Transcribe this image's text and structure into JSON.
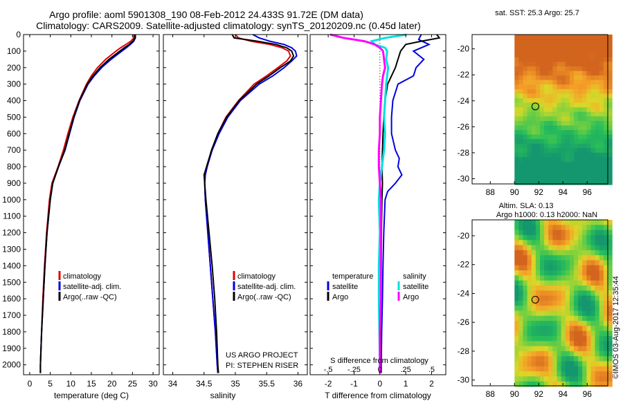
{
  "title": {
    "line1": "Argo profile: aoml 5901308_190 08-Feb-2012 24.433S 91.72E (DM data)",
    "line2": "Climatology: CARS2009. Satellite-adjusted climatology: synTS_20120209.nc (0.45d later)"
  },
  "colors": {
    "climatology": "#e00000",
    "satellite": "#0000e0",
    "argo": "#000000",
    "salinity_satellite": "#00e0e0",
    "salinity_argo": "#ff00ff"
  },
  "depth_axis": {
    "ylim": [
      0,
      2060
    ],
    "ticks": [
      0,
      100,
      200,
      300,
      400,
      500,
      600,
      700,
      800,
      900,
      1000,
      1100,
      1200,
      1300,
      1400,
      1500,
      1600,
      1700,
      1800,
      1900,
      2000
    ]
  },
  "chart_data": [
    {
      "id": "temperature",
      "type": "line",
      "xlabel": "temperature (deg C)",
      "xlim": [
        -1.5,
        31.5
      ],
      "xticks": [
        0,
        5,
        10,
        15,
        20,
        25,
        30
      ],
      "series": [
        {
          "name": "climatology",
          "color": "#e00000",
          "depth": [
            0,
            20,
            40,
            60,
            80,
            100,
            150,
            200,
            250,
            300,
            400,
            500,
            600,
            700,
            800,
            900,
            1000,
            1200,
            1400,
            1600,
            1800,
            2000,
            2050
          ],
          "values": [
            25.3,
            25.3,
            24.6,
            23.4,
            22.1,
            21.0,
            18.5,
            16.5,
            15.0,
            13.8,
            12.0,
            10.5,
            9.3,
            8.2,
            6.9,
            5.4,
            4.8,
            4.1,
            3.6,
            3.2,
            2.9,
            2.6,
            2.6
          ]
        },
        {
          "name": "satellite-adj. clim.",
          "color": "#0000e0",
          "depth": [
            0,
            20,
            40,
            60,
            80,
            100,
            150,
            200,
            250,
            300,
            400,
            500,
            600,
            700,
            800,
            900,
            1000,
            1200,
            1400,
            1600,
            1800,
            2000,
            2050
          ],
          "values": [
            25.7,
            25.7,
            25.3,
            24.5,
            23.5,
            22.4,
            19.8,
            17.5,
            15.7,
            14.2,
            12.2,
            10.8,
            9.7,
            8.6,
            7.0,
            5.6,
            5.0,
            4.2,
            3.7,
            3.3,
            2.9,
            2.6,
            2.6
          ]
        },
        {
          "name": "Argo(..raw -QC)",
          "color": "#000000",
          "depth": [
            0,
            20,
            40,
            60,
            80,
            100,
            150,
            200,
            250,
            300,
            400,
            500,
            600,
            700,
            800,
            900,
            1000,
            1200,
            1400,
            1600,
            1800,
            2000,
            2050
          ],
          "values": [
            25.6,
            25.6,
            25.1,
            24.2,
            23.0,
            21.9,
            19.3,
            17.1,
            15.4,
            14.0,
            12.1,
            10.7,
            9.6,
            8.5,
            7.0,
            5.6,
            5.0,
            4.2,
            3.7,
            3.3,
            2.9,
            2.6,
            2.6
          ]
        }
      ],
      "legend": {
        "position": "lower-center",
        "entries": [
          "climatology",
          "satellite-adj. clim.",
          "Argo(..raw -QC)"
        ]
      }
    },
    {
      "id": "salinity",
      "type": "line",
      "xlabel": "salinity",
      "xlim": [
        33.85,
        36.15
      ],
      "xticks": [
        34,
        34.5,
        35,
        35.5,
        36
      ],
      "series": [
        {
          "name": "climatology",
          "color": "#e00000",
          "depth": [
            0,
            20,
            40,
            60,
            80,
            100,
            130,
            160,
            200,
            250,
            300,
            400,
            500,
            600,
            700,
            800,
            850,
            900,
            1000,
            1200,
            1400,
            1600,
            1800,
            2000,
            2050
          ],
          "values": [
            35.0,
            35.05,
            35.25,
            35.55,
            35.75,
            35.85,
            35.88,
            35.82,
            35.68,
            35.5,
            35.3,
            35.05,
            34.85,
            34.72,
            34.62,
            34.55,
            34.52,
            34.51,
            34.52,
            34.56,
            34.6,
            34.64,
            34.68,
            34.71,
            34.72
          ]
        },
        {
          "name": "satellite-adj. clim.",
          "color": "#0000e0",
          "depth": [
            0,
            20,
            40,
            60,
            80,
            100,
            130,
            160,
            200,
            250,
            300,
            400,
            500,
            600,
            700,
            800,
            850,
            900,
            1000,
            1200,
            1400,
            1600,
            1800,
            2000,
            2050
          ],
          "values": [
            35.28,
            35.38,
            35.55,
            35.78,
            35.9,
            35.96,
            35.98,
            35.9,
            35.78,
            35.6,
            35.38,
            35.08,
            34.88,
            34.74,
            34.63,
            34.55,
            34.52,
            34.51,
            34.52,
            34.56,
            34.6,
            34.64,
            34.68,
            34.71,
            34.72
          ]
        },
        {
          "name": "Argo(..raw -QC)",
          "color": "#000000",
          "depth": [
            0,
            20,
            40,
            60,
            80,
            100,
            130,
            160,
            200,
            250,
            300,
            400,
            500,
            600,
            700,
            800,
            850,
            900,
            1000,
            1200,
            1400,
            1600,
            1800,
            2000,
            2050
          ],
          "values": [
            34.95,
            34.98,
            35.35,
            35.65,
            35.82,
            35.9,
            35.93,
            35.88,
            35.72,
            35.54,
            35.34,
            35.06,
            34.86,
            34.72,
            34.62,
            34.54,
            34.5,
            34.51,
            34.53,
            34.58,
            34.63,
            34.67,
            34.7,
            34.72,
            34.73
          ]
        }
      ],
      "legend": {
        "position": "lower-center",
        "entries": [
          "climatology",
          "satellite-adj. clim.",
          "Argo(..raw -QC)"
        ]
      },
      "annotation": [
        "US ARGO PROJECT",
        "PI: STEPHEN RISER"
      ]
    },
    {
      "id": "difference",
      "type": "line",
      "xlabel_bottom": "T difference from climatology",
      "xlabel_top": "S difference from climatology",
      "xlim": [
        -2.7,
        2.55
      ],
      "xticks": [
        -2,
        -1,
        0,
        1,
        2
      ],
      "sticks": [
        -0.5,
        -0.25,
        0,
        0.25,
        0.5
      ],
      "s_scale": 4,
      "series": [
        {
          "name": "temperature satellite",
          "kind": "T",
          "color": "#0000e0",
          "depth": [
            0,
            30,
            60,
            100,
            150,
            200,
            250,
            300,
            400,
            500,
            600,
            700,
            750,
            800,
            850,
            900,
            950,
            1000,
            1200,
            1400,
            1600,
            1800,
            2000,
            2050
          ],
          "values": [
            1.6,
            1.5,
            1.9,
            1.3,
            1.7,
            1.4,
            1.3,
            0.7,
            0.5,
            0.45,
            0.45,
            0.6,
            0.75,
            0.7,
            0.85,
            0.6,
            0.3,
            0.2,
            0.15,
            0.12,
            0.1,
            0.07,
            0.05,
            0.05
          ]
        },
        {
          "name": "temperature Argo",
          "kind": "T",
          "color": "#000000",
          "depth": [
            0,
            20,
            40,
            60,
            80,
            100,
            150,
            200,
            250,
            300,
            400,
            500,
            600,
            700,
            800,
            900,
            1000,
            1200,
            1400,
            1600,
            1800,
            2000,
            2050
          ],
          "values": [
            2.2,
            2.3,
            1.6,
            1.0,
            0.9,
            0.8,
            0.7,
            0.6,
            0.45,
            0.3,
            0.2,
            0.15,
            0.12,
            0.1,
            0.08,
            0.1,
            0.08,
            0.06,
            0.05,
            0.04,
            0.03,
            0.02,
            0.02
          ]
        },
        {
          "name": "salinity satellite",
          "kind": "S",
          "color": "#00e0e0",
          "depth": [
            0,
            20,
            40,
            60,
            80,
            100,
            150,
            200,
            250,
            300,
            400,
            500,
            600,
            700,
            800,
            900,
            1000,
            1200,
            1400,
            1600,
            1800,
            2000,
            2050
          ],
          "values": [
            0.26,
            0.05,
            -0.08,
            -0.05,
            0.05,
            0.07,
            0.06,
            0.08,
            0.07,
            0.06,
            0.05,
            0.04,
            0.05,
            0.04,
            0.02,
            0.0,
            -0.01,
            0.0,
            -0.01,
            -0.01,
            -0.005,
            0.0,
            0.0
          ]
        },
        {
          "name": "salinity Argo",
          "kind": "S",
          "color": "#ff00ff",
          "depth": [
            0,
            20,
            40,
            60,
            80,
            100,
            150,
            200,
            250,
            300,
            400,
            500,
            600,
            700,
            800,
            900,
            1000,
            1200,
            1400,
            1600,
            1800,
            2000,
            2050
          ],
          "values": [
            -0.48,
            -0.35,
            -0.15,
            -0.05,
            0.0,
            0.03,
            0.04,
            0.05,
            0.03,
            0.02,
            0.01,
            0.0,
            0.0,
            -0.01,
            -0.01,
            0.0,
            0.01,
            0.01,
            0.01,
            0.01,
            0.0,
            0.0,
            0.0
          ]
        }
      ],
      "legend": {
        "position": "lower-center",
        "temperature_title": "temperature",
        "salinity_title": "salinity",
        "temperature_entries": [
          "satellite",
          "Argo"
        ],
        "salinity_entries": [
          "satellite",
          "Argo"
        ]
      }
    },
    {
      "id": "sst_map",
      "type": "heatmap",
      "title": "sat. SST: 25.3 Argo: 25.7",
      "xlim": [
        86.5,
        97.7
      ],
      "ylim": [
        -30.4,
        -18.9
      ],
      "xticks": [
        88,
        90,
        92,
        94,
        96
      ],
      "yticks": [
        -20,
        -22,
        -24,
        -26,
        -28,
        -30
      ],
      "data_lon_start": 90,
      "marker": {
        "lon": 91.72,
        "lat": -24.433
      }
    },
    {
      "id": "sla_map",
      "type": "heatmap",
      "title_line1": "Altim. SLA: 0.13",
      "title_line2": "Argo h1000: 0.13 h2000: NaN",
      "xlim": [
        86.5,
        97.7
      ],
      "ylim": [
        -30.4,
        -18.9
      ],
      "xticks": [
        88,
        90,
        92,
        94,
        96
      ],
      "yticks": [
        -20,
        -22,
        -24,
        -26,
        -28,
        -30
      ],
      "data_lon_start": 90,
      "marker": {
        "lon": 91.72,
        "lat": -24.433
      }
    }
  ],
  "footer": {
    "stamp": "©IMOS 03-Aug-2017 12:35:44"
  }
}
